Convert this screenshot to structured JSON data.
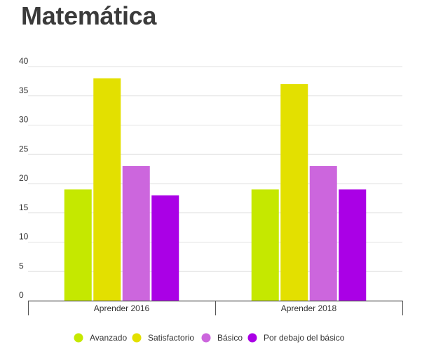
{
  "chart_data": {
    "type": "bar",
    "title": "Matemática",
    "xlabel": "",
    "ylabel": "",
    "ylim": [
      0,
      40
    ],
    "yticks": [
      0,
      5,
      10,
      15,
      20,
      25,
      30,
      35,
      40
    ],
    "grid": true,
    "legend_position": "bottom",
    "categories": [
      "Aprender 2016",
      "Aprender 2018"
    ],
    "series": [
      {
        "name": "Avanzado",
        "color": "#c5e800",
        "values": [
          19,
          19
        ]
      },
      {
        "name": "Satisfactorio",
        "color": "#e3e000",
        "values": [
          38,
          37
        ]
      },
      {
        "name": "Básico",
        "color": "#cc66dd",
        "values": [
          23,
          23
        ]
      },
      {
        "name": "Por debajo del básico",
        "color": "#aa00e6",
        "values": [
          18,
          19
        ]
      }
    ]
  }
}
